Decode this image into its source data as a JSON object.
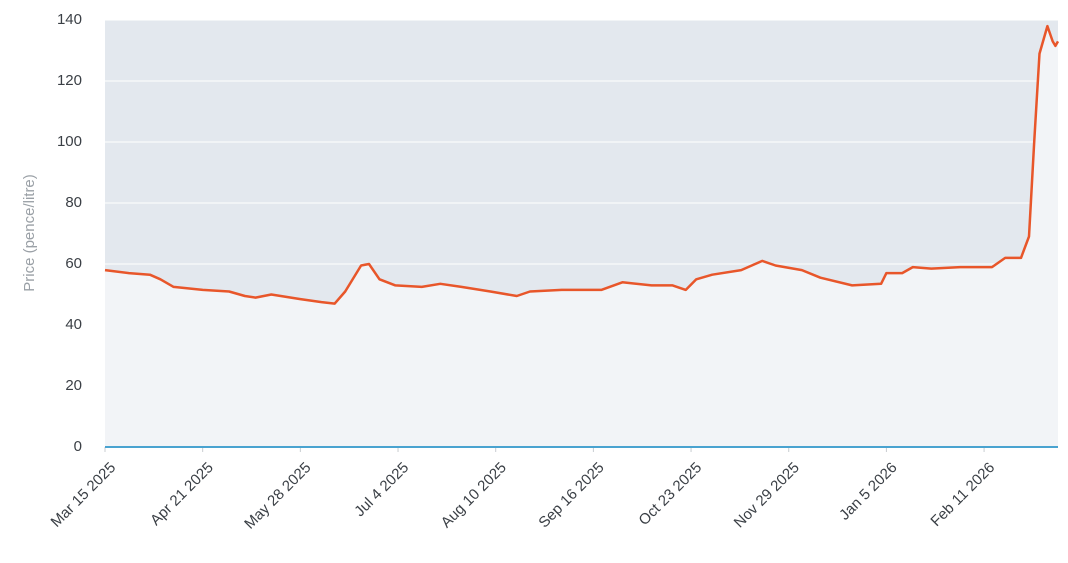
{
  "chart_data": {
    "type": "line",
    "y_label": "Price (pence/litre)",
    "x": [
      "2025-03-15",
      "2025-03-24",
      "2025-04-01",
      "2025-04-05",
      "2025-04-10",
      "2025-04-21",
      "2025-05-01",
      "2025-05-07",
      "2025-05-11",
      "2025-05-17",
      "2025-05-28",
      "2025-06-05",
      "2025-06-10",
      "2025-06-14",
      "2025-06-20",
      "2025-06-23",
      "2025-06-27",
      "2025-07-03",
      "2025-07-13",
      "2025-07-20",
      "2025-07-28",
      "2025-08-08",
      "2025-08-18",
      "2025-08-23",
      "2025-09-04",
      "2025-09-19",
      "2025-09-27",
      "2025-10-08",
      "2025-10-16",
      "2025-10-21",
      "2025-10-25",
      "2025-10-31",
      "2025-11-11",
      "2025-11-19",
      "2025-11-24",
      "2025-12-04",
      "2025-12-11",
      "2025-12-23",
      "2026-01-03",
      "2026-01-05",
      "2026-01-11",
      "2026-01-15",
      "2026-01-22",
      "2026-02-02",
      "2026-02-14",
      "2026-02-19",
      "2026-02-25",
      "2026-02-28",
      "2026-03-02",
      "2026-03-04",
      "2026-03-07",
      "2026-03-09",
      "2026-03-10",
      "2026-03-11"
    ],
    "series": [
      {
        "name": "Price",
        "color": "#e8562a",
        "values": [
          58,
          57,
          56.5,
          55,
          52.5,
          51.5,
          51,
          49.5,
          49,
          50,
          48.5,
          47.5,
          47,
          51,
          59.5,
          60,
          55,
          53,
          52.5,
          53.5,
          52.5,
          51,
          49.5,
          51,
          51.5,
          51.5,
          54,
          53,
          53,
          51.5,
          55,
          56.5,
          58,
          61,
          59.5,
          58,
          55.5,
          53,
          53.5,
          57,
          57,
          59,
          58.5,
          59,
          59,
          62,
          62,
          69,
          100,
          129,
          138,
          133,
          131.5,
          133
        ]
      }
    ],
    "xlim": [
      "2025-03-15",
      "2026-03-11"
    ],
    "xticks": [
      {
        "value": "2025-03-15",
        "label": "Mar 15 2025"
      },
      {
        "value": "2025-04-21",
        "label": "Apr 21 2025"
      },
      {
        "value": "2025-05-28",
        "label": "May 28 2025"
      },
      {
        "value": "2025-07-04",
        "label": "Jul 4 2025"
      },
      {
        "value": "2025-08-10",
        "label": "Aug 10 2025"
      },
      {
        "value": "2025-09-16",
        "label": "Sep 16 2025"
      },
      {
        "value": "2025-10-23",
        "label": "Oct 23 2025"
      },
      {
        "value": "2025-11-29",
        "label": "Nov 29 2025"
      },
      {
        "value": "2026-01-05",
        "label": "Jan 5 2026"
      },
      {
        "value": "2026-02-11",
        "label": "Feb 11 2026"
      }
    ],
    "ylim": [
      0,
      140
    ],
    "yticks": [
      0,
      20,
      40,
      60,
      80,
      100,
      120,
      140
    ],
    "grid": true
  }
}
